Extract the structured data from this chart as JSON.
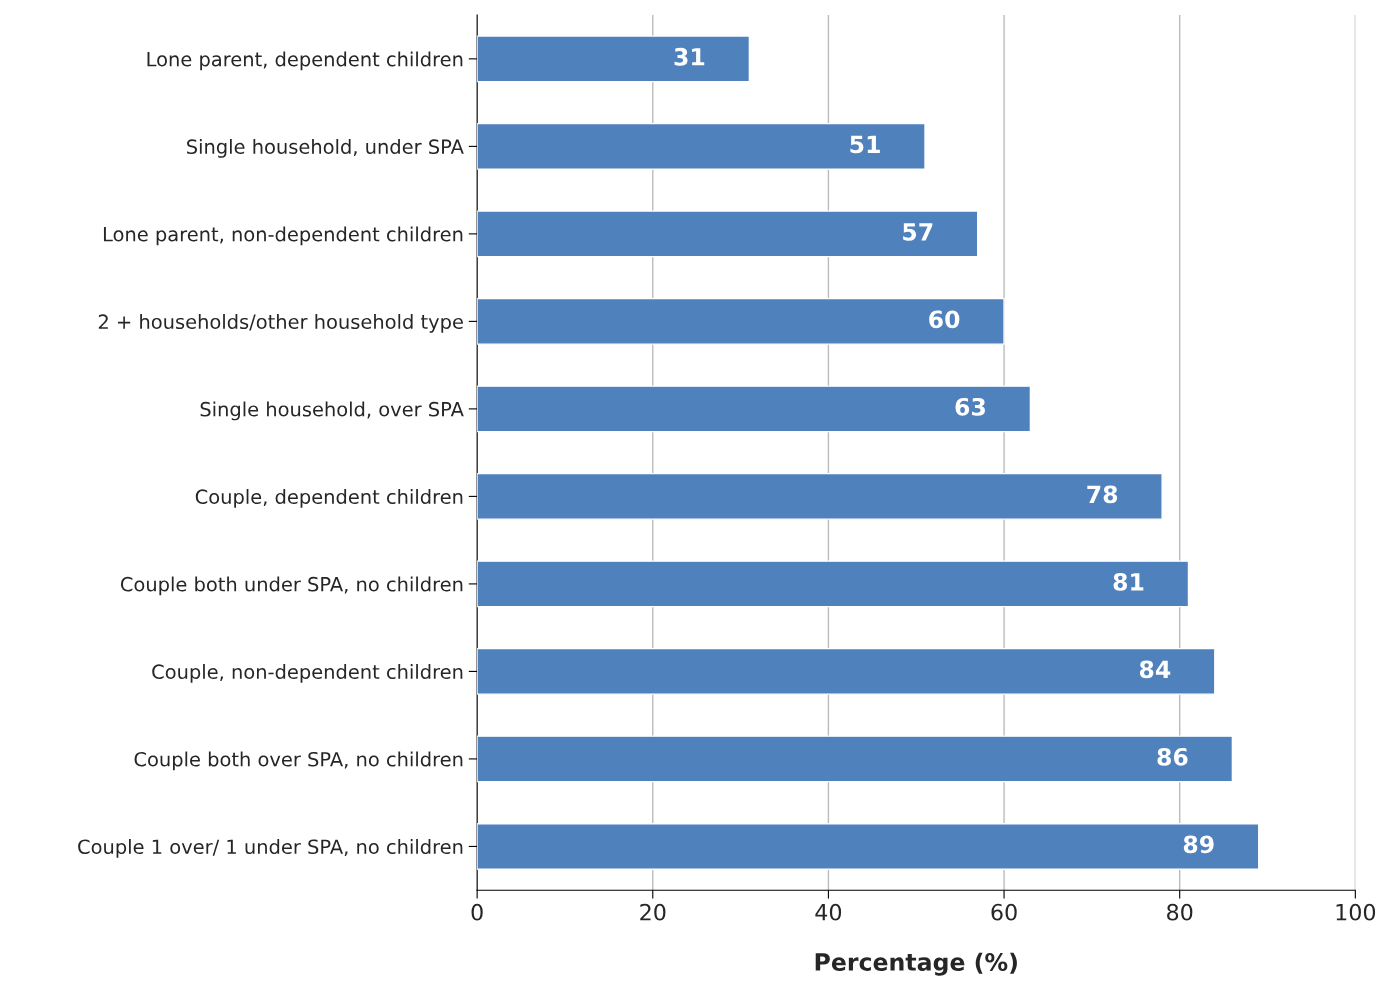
{
  "chart_data": {
    "type": "bar",
    "orientation": "horizontal",
    "xlabel": "Percentage (%)",
    "categories": [
      "Lone parent, dependent children",
      "Single household, under SPA",
      "Lone parent, non-dependent children",
      "2 + households/other household type",
      "Single household, over SPA",
      "Couple, dependent children",
      "Couple both under SPA, no children",
      "Couple, non-dependent children",
      "Couple both over SPA, no children",
      "Couple 1 over/ 1 under SPA, no children"
    ],
    "values": [
      31,
      51,
      57,
      60,
      63,
      78,
      81,
      84,
      86,
      89
    ],
    "color": "#4f81bd",
    "xlim": [
      0,
      100
    ],
    "xticks": [
      0,
      20,
      40,
      60,
      80,
      100
    ],
    "grid": "x",
    "data_labels": true,
    "legend": false
  }
}
